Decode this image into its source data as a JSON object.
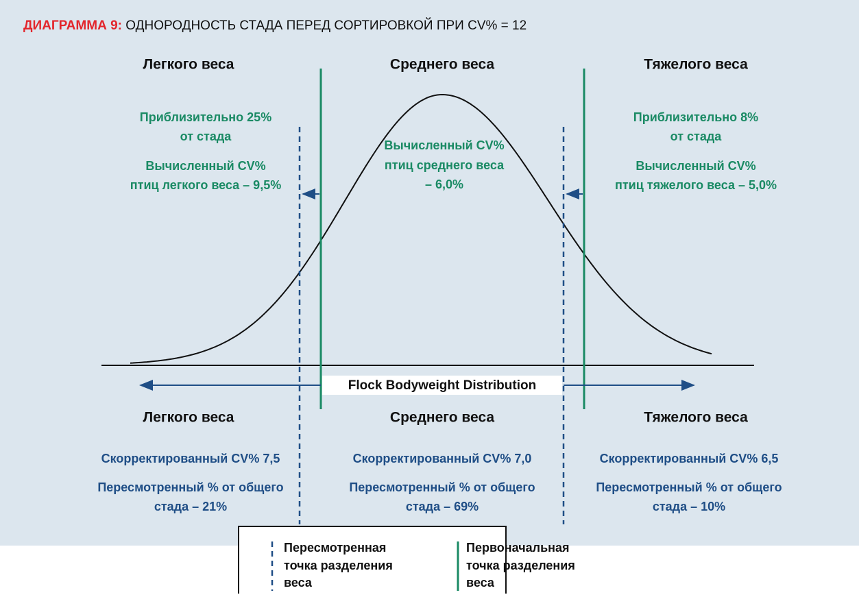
{
  "title": {
    "label": "ДИАГРАММА  9:",
    "text": " ОДНОРОДНОСТЬ СТАДА ПЕРЕД СОРТИРОВКОЙ ПРИ CV% = 12"
  },
  "top": {
    "headings": [
      "Легкого веса",
      "Среднего веса",
      "Тяжелого веса"
    ],
    "left": [
      "Приблизительно 25%",
      "от стада",
      "Вычисленный CV%",
      "птиц легкого веса – 9,5%"
    ],
    "middle": [
      "Вычисленный CV%",
      "птиц среднего веса",
      "– 6,0%"
    ],
    "right": [
      "Приблизительно 8%",
      "от стада",
      "Вычисленный CV%",
      "птиц тяжелого веса – 5,0%"
    ]
  },
  "axis_label": "Flock Bodyweight Distribution",
  "bottom": {
    "headings": [
      "Легкого веса",
      "Среднего веса",
      "Тяжелого веса"
    ],
    "left": [
      "Скорректированный CV% 7,5",
      "Пересмотренный % от общего",
      "стада – 21%"
    ],
    "middle": [
      "Скорректированный CV% 7,0",
      "Пересмотренный % от общего",
      "стада – 69%"
    ],
    "right": [
      "Скорректированный CV% 6,5",
      "Пересмотренный % от общего",
      "стада – 10%"
    ]
  },
  "legend": {
    "revised": [
      "Пересмотренная",
      "точка разделения",
      "веса"
    ],
    "original": [
      "Первоначальная",
      "точка разделения",
      " веса"
    ]
  }
}
